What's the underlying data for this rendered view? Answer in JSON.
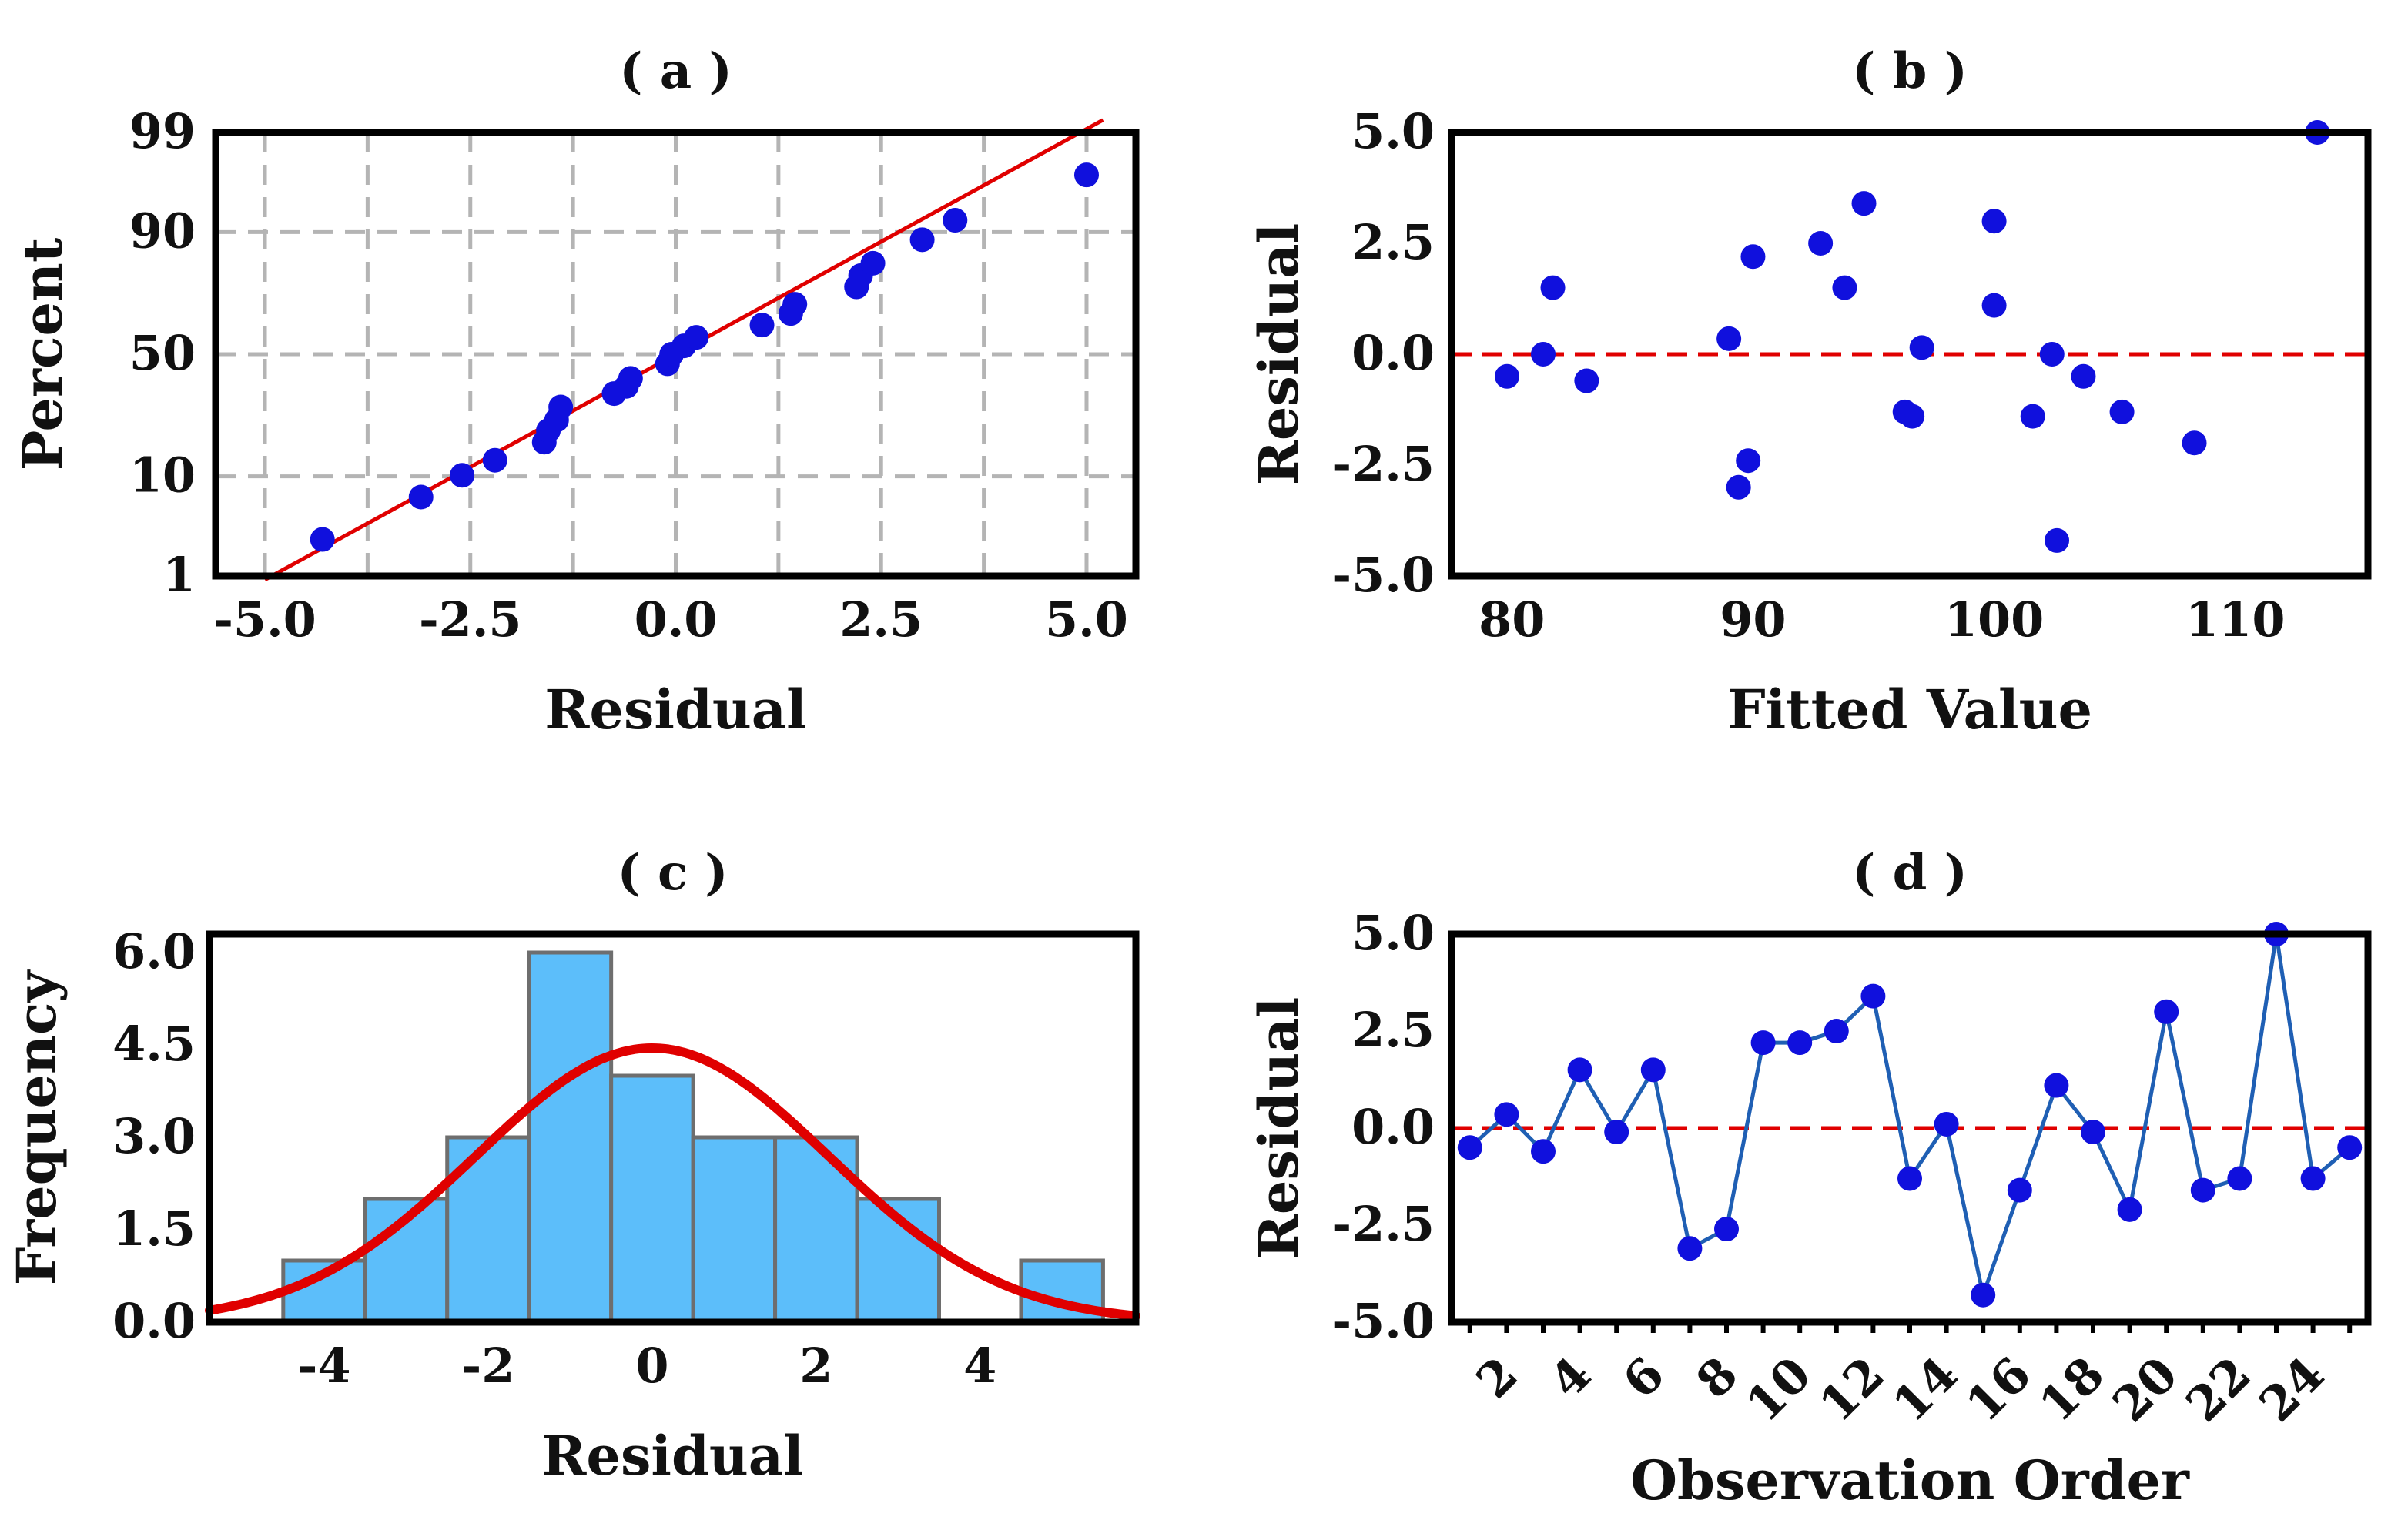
{
  "chart_data": [
    {
      "id": "a",
      "type": "scatter",
      "title": "( a )",
      "xlabel": "Residual",
      "ylabel": "Percent",
      "xlim": [
        -5.6,
        5.6
      ],
      "ylim": [
        1,
        99
      ],
      "yscale": "normal-probability",
      "xticks": [
        -5.0,
        -2.5,
        0.0,
        2.5,
        5.0
      ],
      "xtick_labels": [
        "-5.0",
        "-2.5",
        "0.0",
        "2.5",
        "5.0"
      ],
      "yticks": [
        1,
        10,
        50,
        90,
        99
      ],
      "ytick_labels": [
        "1",
        "10",
        "50",
        "90",
        "99"
      ],
      "xgrid": [
        -5.0,
        -3.75,
        -2.5,
        -1.25,
        0.0,
        1.25,
        2.5,
        3.75,
        5.0
      ],
      "grid": true,
      "points_color": "#1010dd",
      "line_color": "#e00000",
      "points": [
        {
          "x": -4.3,
          "y": 2.6
        },
        {
          "x": -3.1,
          "y": 6.7
        },
        {
          "x": -2.6,
          "y": 10.2
        },
        {
          "x": -2.2,
          "y": 13.3
        },
        {
          "x": -1.6,
          "y": 17.8
        },
        {
          "x": -1.55,
          "y": 21.2
        },
        {
          "x": -1.45,
          "y": 24.5
        },
        {
          "x": -1.4,
          "y": 29.0
        },
        {
          "x": -0.75,
          "y": 34.0
        },
        {
          "x": -0.6,
          "y": 36.8
        },
        {
          "x": -0.55,
          "y": 40.0
        },
        {
          "x": -0.1,
          "y": 46.0
        },
        {
          "x": -0.05,
          "y": 50.0
        },
        {
          "x": 0.1,
          "y": 53.5
        },
        {
          "x": 0.25,
          "y": 57.0
        },
        {
          "x": 1.05,
          "y": 62.0
        },
        {
          "x": 1.4,
          "y": 66.5
        },
        {
          "x": 1.45,
          "y": 70.0
        },
        {
          "x": 2.2,
          "y": 76.0
        },
        {
          "x": 2.25,
          "y": 79.5
        },
        {
          "x": 2.4,
          "y": 83.0
        },
        {
          "x": 3.0,
          "y": 88.5
        },
        {
          "x": 3.4,
          "y": 92.0
        },
        {
          "x": 5.0,
          "y": 97.0
        }
      ],
      "fit_line": {
        "x": [
          -5.0,
          5.2
        ],
        "y": [
          0.9,
          99.3
        ]
      }
    },
    {
      "id": "b",
      "type": "scatter",
      "title": "( b )",
      "xlabel": "Fitted Value",
      "ylabel": "Residual",
      "xlim": [
        77.5,
        115.5
      ],
      "ylim": [
        -5.0,
        5.0
      ],
      "xticks": [
        80,
        90,
        100,
        110
      ],
      "xtick_labels": [
        "80",
        "90",
        "100",
        "110"
      ],
      "yticks": [
        -5.0,
        -2.5,
        0.0,
        2.5,
        5.0
      ],
      "ytick_labels": [
        "-5.0",
        "-2.5",
        "0.0",
        "2.5",
        "5.0"
      ],
      "reference_line": 0.0,
      "points_color": "#1010dd",
      "reference_color": "#e00000",
      "points": [
        {
          "x": 79.8,
          "y": -0.5
        },
        {
          "x": 81.3,
          "y": 0.0
        },
        {
          "x": 81.7,
          "y": 1.5
        },
        {
          "x": 83.1,
          "y": -0.6
        },
        {
          "x": 89.0,
          "y": 0.35
        },
        {
          "x": 89.4,
          "y": -3.0
        },
        {
          "x": 89.8,
          "y": -2.4
        },
        {
          "x": 90.0,
          "y": 2.2
        },
        {
          "x": 92.8,
          "y": 2.5
        },
        {
          "x": 93.8,
          "y": 1.5
        },
        {
          "x": 94.6,
          "y": 3.4
        },
        {
          "x": 96.3,
          "y": -1.3
        },
        {
          "x": 96.6,
          "y": -1.4
        },
        {
          "x": 97.0,
          "y": 0.15
        },
        {
          "x": 100.0,
          "y": 3.0
        },
        {
          "x": 100.0,
          "y": 1.1
        },
        {
          "x": 101.6,
          "y": -1.4
        },
        {
          "x": 102.4,
          "y": 0.0
        },
        {
          "x": 102.6,
          "y": -4.2
        },
        {
          "x": 103.7,
          "y": -0.5
        },
        {
          "x": 105.3,
          "y": -1.3
        },
        {
          "x": 108.3,
          "y": -2.0
        },
        {
          "x": 113.4,
          "y": 5.0
        }
      ]
    },
    {
      "id": "c",
      "type": "bar",
      "title": "( c )",
      "xlabel": "Residual",
      "ylabel": "Frequency",
      "xlim": [
        -5.4,
        5.9
      ],
      "ylim": [
        0.0,
        6.3
      ],
      "xticks": [
        -4,
        -2,
        0,
        2,
        4
      ],
      "xtick_labels": [
        "-4",
        "-2",
        "0",
        "2",
        "4"
      ],
      "yticks": [
        0.0,
        1.5,
        3.0,
        4.5,
        6.0
      ],
      "ytick_labels": [
        "0.0",
        "1.5",
        "3.0",
        "4.5",
        "6.0"
      ],
      "bar_color": "#5cbefa",
      "bar_edge": "#6e6e6e",
      "curve_color": "#e00000",
      "bins": [
        {
          "x0": -4.5,
          "x1": -3.5,
          "count": 1
        },
        {
          "x0": -3.5,
          "x1": -2.5,
          "count": 2
        },
        {
          "x0": -2.5,
          "x1": -1.5,
          "count": 3
        },
        {
          "x0": -1.5,
          "x1": -0.5,
          "count": 6
        },
        {
          "x0": -0.5,
          "x1": 0.5,
          "count": 4
        },
        {
          "x0": 0.5,
          "x1": 1.5,
          "count": 3
        },
        {
          "x0": 1.5,
          "x1": 2.5,
          "count": 3
        },
        {
          "x0": 2.5,
          "x1": 3.5,
          "count": 2
        },
        {
          "x0": 3.5,
          "x1": 4.5,
          "count": 0
        },
        {
          "x0": 4.5,
          "x1": 5.5,
          "count": 1
        }
      ],
      "normal_curve": {
        "mean": 0.0,
        "sd": 2.15,
        "peak": 4.45
      }
    },
    {
      "id": "d",
      "type": "line",
      "title": "( d )",
      "xlabel": "Observation Order",
      "ylabel": "Residual",
      "xlim": [
        0.5,
        25.5
      ],
      "ylim": [
        -5.0,
        5.0
      ],
      "xticks": [
        2,
        4,
        6,
        8,
        10,
        12,
        14,
        16,
        18,
        20,
        22,
        24
      ],
      "xtick_labels": [
        "2",
        "4",
        "6",
        "8",
        "10",
        "12",
        "14",
        "16",
        "18",
        "20",
        "22",
        "24"
      ],
      "yticks": [
        -5.0,
        -2.5,
        0.0,
        2.5,
        5.0
      ],
      "ytick_labels": [
        "-5.0",
        "-2.5",
        "0.0",
        "2.5",
        "5.0"
      ],
      "reference_line": 0.0,
      "line_color": "#1f5fb4",
      "points_color": "#1010dd",
      "reference_color": "#e00000",
      "x": [
        1,
        2,
        3,
        4,
        5,
        6,
        7,
        8,
        9,
        10,
        11,
        12,
        13,
        14,
        15,
        16,
        17,
        18,
        19,
        20,
        21,
        22,
        23,
        24,
        25
      ],
      "y": [
        -0.5,
        0.35,
        -0.6,
        1.5,
        -0.1,
        1.5,
        -3.1,
        -2.6,
        2.2,
        2.2,
        2.5,
        3.4,
        -1.3,
        0.1,
        -4.3,
        -1.6,
        1.1,
        -0.1,
        -2.1,
        3.0,
        -1.6,
        -1.3,
        5.0,
        -1.3,
        -0.5
      ]
    }
  ]
}
